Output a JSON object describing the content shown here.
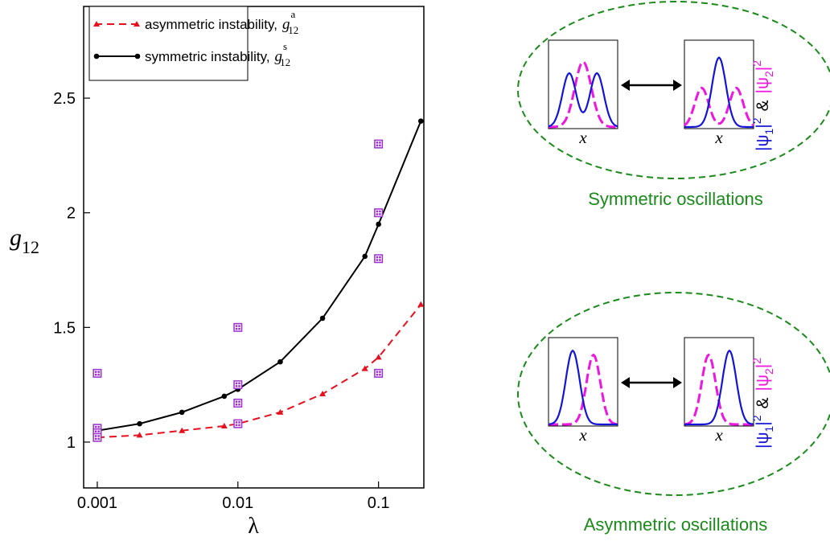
{
  "chart_data": {
    "type": "line",
    "x_label": "λ",
    "y_label": {
      "base": "g",
      "sub": "12"
    },
    "log_x": true,
    "xlim": [
      0.0008,
      0.21
    ],
    "ylim": [
      0.8,
      2.9
    ],
    "xticks": [
      0.001,
      0.01,
      0.1
    ],
    "yticks": [
      1,
      1.5,
      2,
      2.5
    ],
    "x": [
      0.001,
      0.002,
      0.004,
      0.008,
      0.01,
      0.02,
      0.04,
      0.08,
      0.1,
      0.2
    ],
    "series": [
      {
        "name": "asymmetric instability,",
        "symbol": {
          "base": "g",
          "sub": "12",
          "sup": "a"
        },
        "color": "#e8101e",
        "dashed": true,
        "marker": "triangle",
        "values": [
          1.02,
          1.03,
          1.05,
          1.07,
          1.08,
          1.13,
          1.21,
          1.32,
          1.37,
          1.6
        ]
      },
      {
        "name": "symmetric instability,",
        "symbol": {
          "base": "g",
          "sub": "12",
          "sup": "s"
        },
        "color": "#000000",
        "dashed": false,
        "marker": "circle",
        "values": [
          1.05,
          1.08,
          1.13,
          1.2,
          1.23,
          1.35,
          1.54,
          1.81,
          1.95,
          2.4
        ]
      }
    ],
    "points": {
      "color": "#9b30d0",
      "x": [
        0.001,
        0.001,
        0.001,
        0.001,
        0.01,
        0.01,
        0.01,
        0.01,
        0.1,
        0.1,
        0.1,
        0.1
      ],
      "y": [
        1.3,
        1.06,
        1.04,
        1.02,
        1.5,
        1.25,
        1.17,
        1.08,
        2.3,
        2.0,
        1.8,
        1.3
      ]
    }
  },
  "diagrams": [
    {
      "caption": "Symmetric oscillations",
      "panel_x": "x"
    },
    {
      "caption": "Asymmetric oscillations",
      "panel_x": "x"
    }
  ],
  "density_label": {
    "psi": "|ψ",
    "sub1": "1",
    "sub2": "2",
    "bar": "|",
    "sq": "2",
    "and": "&"
  }
}
